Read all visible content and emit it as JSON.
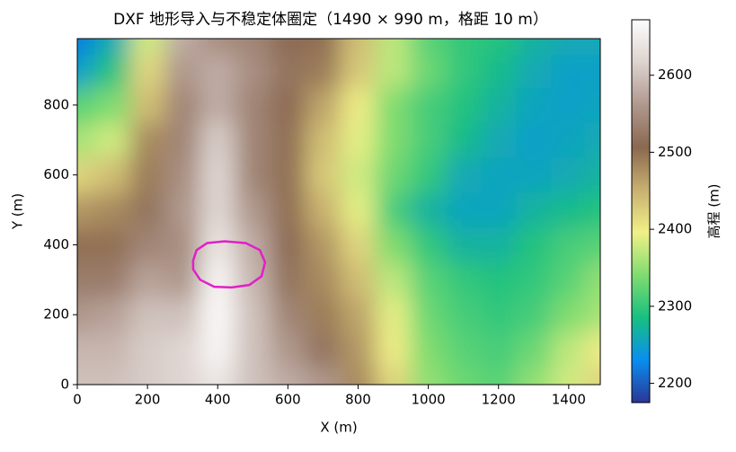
{
  "chart_data": {
    "type": "heatmap",
    "title": "DXF 地形导入与不稳定体圈定（1490 × 990 m，格距 10 m）",
    "x_label": "X (m)",
    "y_label": "Y (m)",
    "colorbar_label": "高程 (m)",
    "x": [
      0,
      100,
      200,
      300,
      400,
      500,
      600,
      700,
      800,
      900,
      1000,
      1100,
      1200,
      1300,
      1400,
      1490
    ],
    "y": [
      0,
      100,
      200,
      300,
      400,
      500,
      600,
      700,
      800,
      900,
      990
    ],
    "z": [
      [
        2600,
        2600,
        2610,
        2620,
        2640,
        2600,
        2580,
        2560,
        2480,
        2420,
        2350,
        2330,
        2320,
        2350,
        2380,
        2420
      ],
      [
        2590,
        2590,
        2610,
        2620,
        2660,
        2600,
        2560,
        2520,
        2470,
        2400,
        2340,
        2320,
        2310,
        2330,
        2370,
        2400
      ],
      [
        2560,
        2570,
        2600,
        2600,
        2665,
        2600,
        2540,
        2490,
        2460,
        2390,
        2330,
        2310,
        2300,
        2310,
        2340,
        2360
      ],
      [
        2530,
        2530,
        2570,
        2560,
        2660,
        2590,
        2520,
        2480,
        2440,
        2370,
        2320,
        2300,
        2290,
        2300,
        2320,
        2350
      ],
      [
        2500,
        2500,
        2540,
        2550,
        2640,
        2580,
        2510,
        2470,
        2420,
        2340,
        2300,
        2270,
        2270,
        2290,
        2310,
        2320
      ],
      [
        2470,
        2480,
        2520,
        2560,
        2620,
        2560,
        2500,
        2450,
        2390,
        2310,
        2270,
        2255,
        2255,
        2270,
        2280,
        2290
      ],
      [
        2420,
        2440,
        2490,
        2550,
        2620,
        2540,
        2500,
        2430,
        2380,
        2330,
        2300,
        2260,
        2255,
        2255,
        2260,
        2270
      ],
      [
        2360,
        2380,
        2480,
        2540,
        2610,
        2540,
        2500,
        2440,
        2390,
        2340,
        2310,
        2280,
        2260,
        2250,
        2255,
        2260
      ],
      [
        2320,
        2340,
        2440,
        2540,
        2580,
        2540,
        2510,
        2460,
        2400,
        2340,
        2310,
        2290,
        2270,
        2255,
        2250,
        2255
      ],
      [
        2250,
        2290,
        2420,
        2560,
        2580,
        2550,
        2520,
        2490,
        2430,
        2370,
        2330,
        2300,
        2280,
        2260,
        2250,
        2250
      ],
      [
        2220,
        2260,
        2380,
        2580,
        2550,
        2540,
        2510,
        2500,
        2440,
        2370,
        2320,
        2300,
        2290,
        2270,
        2260,
        2260
      ]
    ],
    "xlim": [
      0,
      1490
    ],
    "ylim": [
      0,
      990
    ],
    "xticks": [
      0,
      200,
      400,
      600,
      800,
      1000,
      1200,
      1400
    ],
    "yticks": [
      0,
      200,
      400,
      600,
      800
    ],
    "clim": [
      2175,
      2672
    ],
    "cticks": [
      2200,
      2300,
      2400,
      2500,
      2600
    ],
    "colorscale": [
      "#2b3595",
      "#0a8ef0",
      "#18c080",
      "#80dc70",
      "#f0f088",
      "#c8b070",
      "#8a6850",
      "#b0988e",
      "#ddd3cf",
      "#fdfdfd"
    ],
    "outline": {
      "color": "#e020c8",
      "x": [
        330,
        340,
        370,
        420,
        480,
        520,
        535,
        525,
        490,
        440,
        390,
        350,
        330
      ],
      "y": [
        355,
        385,
        405,
        410,
        405,
        385,
        350,
        310,
        285,
        278,
        280,
        300,
        330
      ]
    }
  }
}
